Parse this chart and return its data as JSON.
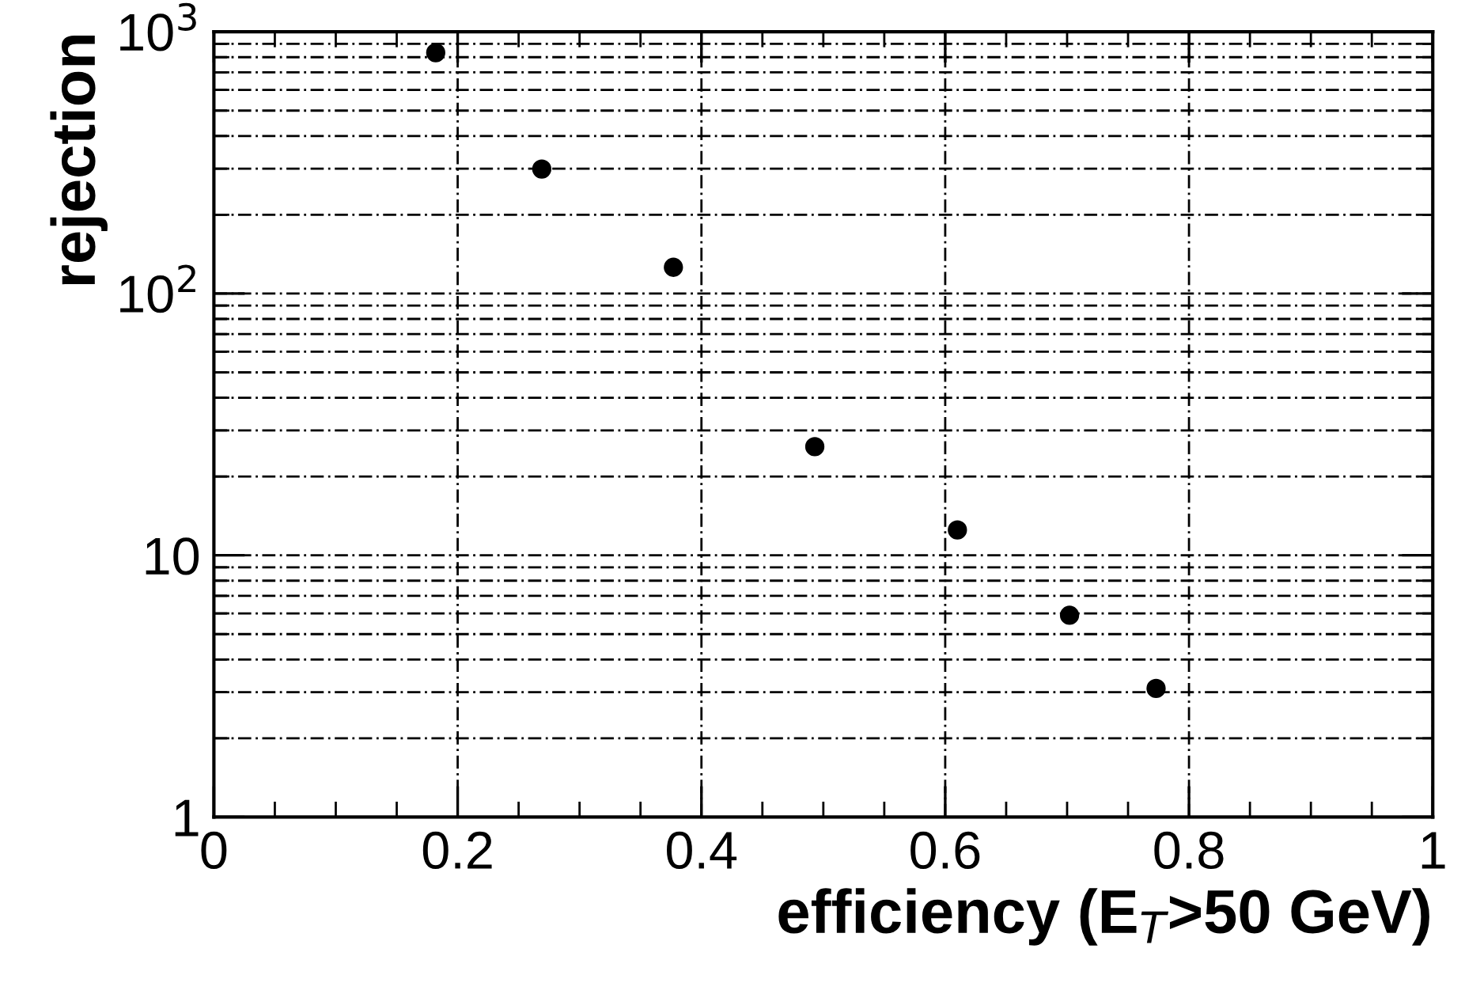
{
  "chart_data": {
    "type": "scatter",
    "xlabel": "efficiency (E$_{T}$>50 GeV)",
    "ylabel": "rejection",
    "x": [
      0.182,
      0.269,
      0.377,
      0.493,
      0.61,
      0.702,
      0.773
    ],
    "series": [
      {
        "color": "#000000",
        "values": [
          832,
          299,
          126,
          26,
          12.5,
          5.9,
          3.1
        ]
      }
    ],
    "xlim": [
      0,
      1
    ],
    "xticks": [
      0,
      0.2,
      0.4,
      0.6,
      0.8,
      1
    ],
    "ylim": [
      1,
      1000
    ],
    "yticks": [
      1,
      10,
      {
        "value": 100,
        "label": "10$^{2}$"
      },
      {
        "value": 1000,
        "label": "10$^{3}$"
      }
    ],
    "log": "y",
    "grid": true,
    "marker": "circle"
  }
}
